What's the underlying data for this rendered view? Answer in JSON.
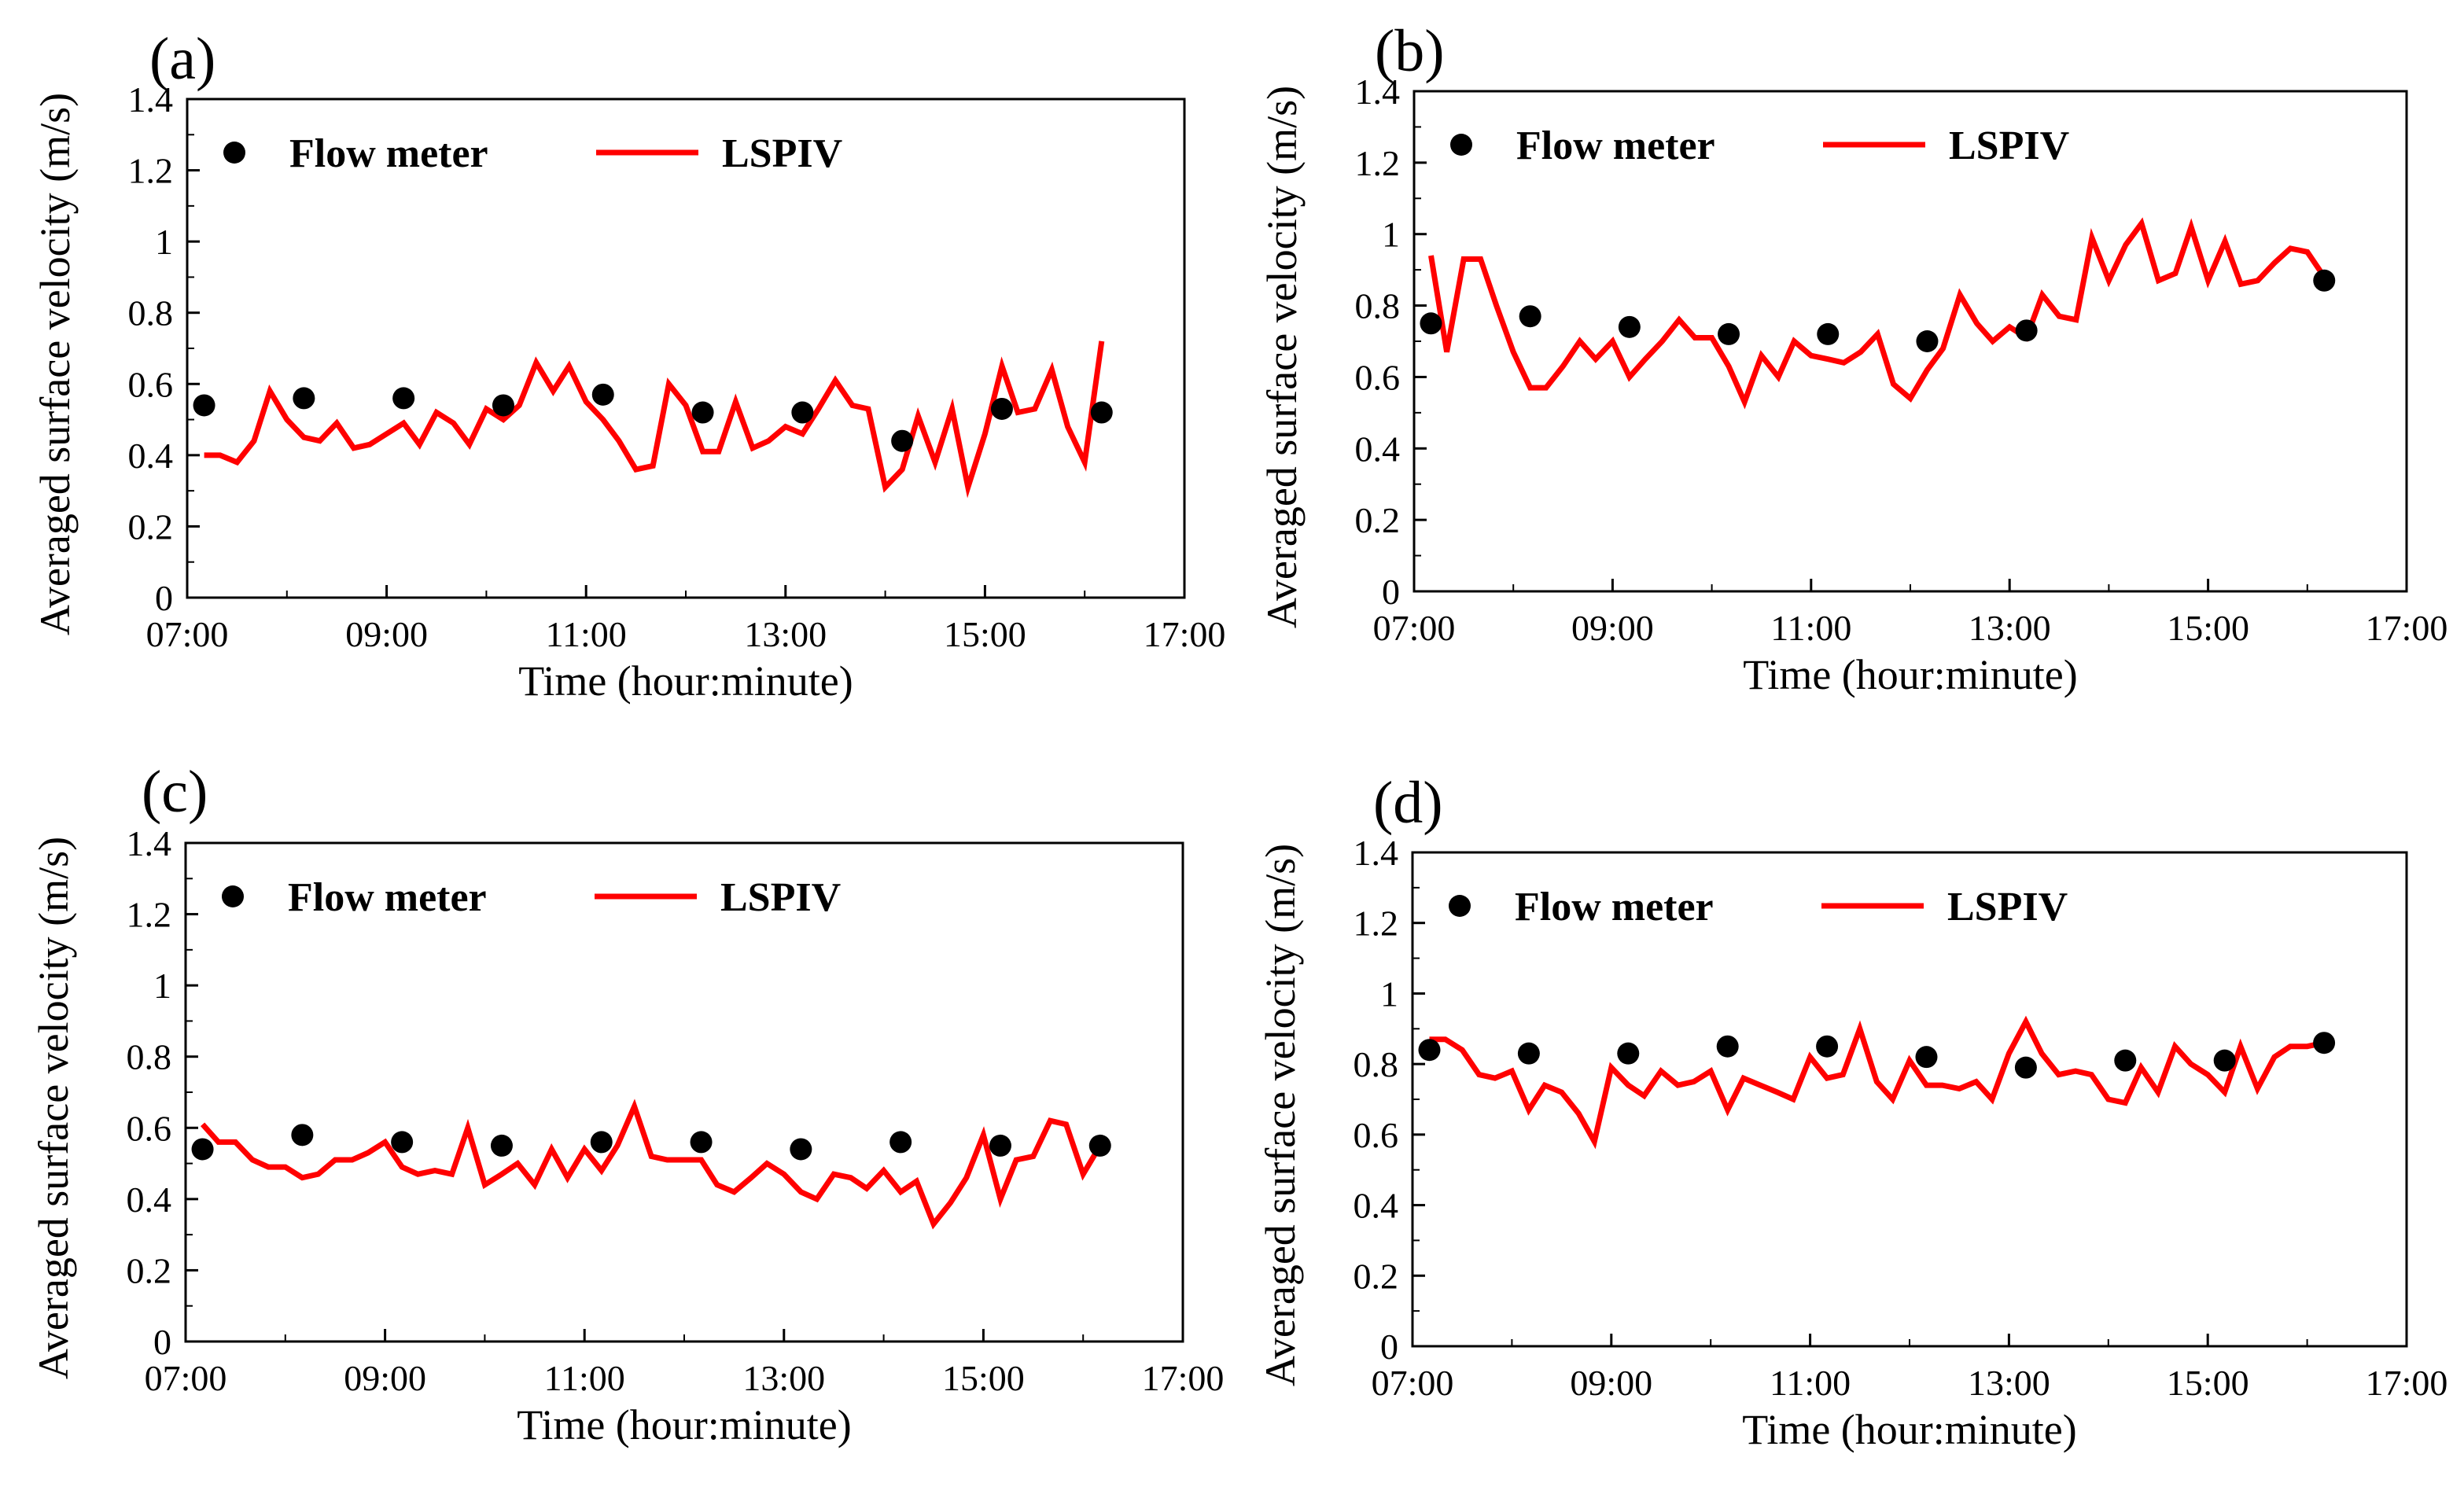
{
  "chart_data": [
    {
      "panel": "(a)",
      "type": "line",
      "xlabel": "Time (hour:minute)",
      "ylabel": "Averaged surface velocity (m/s)",
      "xlim": [
        7,
        17
      ],
      "ylim": [
        0,
        1.4
      ],
      "x_ticks": [
        "07:00",
        "09:00",
        "11:00",
        "13:00",
        "15:00",
        "17:00"
      ],
      "y_ticks": [
        "0",
        "0.2",
        "0.4",
        "0.6",
        "0.8",
        "1",
        "1.2",
        "1.4"
      ],
      "legend": "top-left",
      "series": [
        {
          "name": "Flow meter",
          "style": "points",
          "color": "#000000",
          "x": [
            7.17,
            8.17,
            9.17,
            10.17,
            11.17,
            12.17,
            13.17,
            14.17,
            15.17,
            16.17
          ],
          "y": [
            0.54,
            0.56,
            0.56,
            0.54,
            0.57,
            0.52,
            0.52,
            0.44,
            0.53,
            0.52
          ]
        },
        {
          "name": "LSPIV",
          "style": "line",
          "color": "#ff0000",
          "x": [
            7.17,
            7.33,
            7.5,
            7.67,
            7.83,
            8.0,
            8.17,
            8.33,
            8.5,
            8.67,
            8.83,
            9.0,
            9.17,
            9.33,
            9.5,
            9.67,
            9.83,
            10.0,
            10.17,
            10.33,
            10.5,
            10.67,
            10.83,
            11.0,
            11.17,
            11.33,
            11.5,
            11.67,
            11.83,
            12.0,
            12.17,
            12.33,
            12.5,
            12.67,
            12.83,
            13.0,
            13.17,
            13.33,
            13.5,
            13.67,
            13.83,
            14.0,
            14.17,
            14.33,
            14.5,
            14.67,
            14.83,
            15.0,
            15.17,
            15.33,
            15.5,
            15.67,
            15.83,
            16.0,
            16.17
          ],
          "y": [
            0.4,
            0.4,
            0.38,
            0.44,
            0.58,
            0.5,
            0.45,
            0.44,
            0.49,
            0.42,
            0.43,
            0.46,
            0.49,
            0.43,
            0.52,
            0.49,
            0.43,
            0.53,
            0.5,
            0.54,
            0.66,
            0.58,
            0.65,
            0.55,
            0.5,
            0.44,
            0.36,
            0.37,
            0.6,
            0.54,
            0.41,
            0.41,
            0.55,
            0.42,
            0.44,
            0.48,
            0.46,
            0.53,
            0.61,
            0.54,
            0.53,
            0.31,
            0.36,
            0.51,
            0.38,
            0.53,
            0.31,
            0.46,
            0.65,
            0.52,
            0.53,
            0.64,
            0.48,
            0.38,
            0.72
          ]
        }
      ]
    },
    {
      "panel": "(b)",
      "type": "line",
      "xlabel": "Time (hour:minute)",
      "ylabel": "Averaged surface velocity (m/s)",
      "xlim": [
        7,
        17
      ],
      "ylim": [
        0,
        1.4
      ],
      "x_ticks": [
        "07:00",
        "09:00",
        "11:00",
        "13:00",
        "15:00",
        "17:00"
      ],
      "y_ticks": [
        "0",
        "0.2",
        "0.4",
        "0.6",
        "0.8",
        "1",
        "1.2",
        "1.4"
      ],
      "legend": "top-left",
      "series": [
        {
          "name": "Flow meter",
          "style": "points",
          "color": "#000000",
          "x": [
            7.17,
            8.17,
            9.17,
            10.17,
            11.17,
            12.17,
            13.17,
            16.17
          ],
          "y": [
            0.75,
            0.77,
            0.74,
            0.72,
            0.72,
            0.7,
            0.73,
            0.87
          ]
        },
        {
          "name": "LSPIV",
          "style": "line",
          "color": "#ff0000",
          "x": [
            7.17,
            7.33,
            7.5,
            7.67,
            7.83,
            8.0,
            8.17,
            8.33,
            8.5,
            8.67,
            8.83,
            9.0,
            9.17,
            9.33,
            9.5,
            9.67,
            9.83,
            10.0,
            10.17,
            10.33,
            10.5,
            10.67,
            10.83,
            11.0,
            11.17,
            11.33,
            11.5,
            11.67,
            11.83,
            12.0,
            12.17,
            12.33,
            12.5,
            12.67,
            12.83,
            13.0,
            13.17,
            13.33,
            13.5,
            13.67,
            13.83,
            14.0,
            14.17,
            14.33,
            14.5,
            14.67,
            14.83,
            15.0,
            15.17,
            15.33,
            15.5,
            15.67,
            15.83,
            16.0,
            16.17
          ],
          "y": [
            0.94,
            0.67,
            0.93,
            0.93,
            0.8,
            0.67,
            0.57,
            0.57,
            0.63,
            0.7,
            0.65,
            0.7,
            0.6,
            0.65,
            0.7,
            0.76,
            0.71,
            0.71,
            0.63,
            0.53,
            0.66,
            0.6,
            0.7,
            0.66,
            0.65,
            0.64,
            0.67,
            0.72,
            0.58,
            0.54,
            0.62,
            0.68,
            0.83,
            0.75,
            0.7,
            0.74,
            0.71,
            0.83,
            0.77,
            0.76,
            0.99,
            0.87,
            0.97,
            1.03,
            0.87,
            0.89,
            1.02,
            0.87,
            0.98,
            0.86,
            0.87,
            0.92,
            0.96,
            0.95,
            0.88
          ]
        }
      ]
    },
    {
      "panel": "(c)",
      "type": "line",
      "xlabel": "Time (hour:minute)",
      "ylabel": "Averaged surface velocity (m/s)",
      "xlim": [
        7,
        17
      ],
      "ylim": [
        0,
        1.4
      ],
      "x_ticks": [
        "07:00",
        "09:00",
        "11:00",
        "13:00",
        "15:00",
        "17:00"
      ],
      "y_ticks": [
        "0",
        "0.2",
        "0.4",
        "0.6",
        "0.8",
        "1",
        "1.2",
        "1.4"
      ],
      "legend": "top-left",
      "series": [
        {
          "name": "Flow meter",
          "style": "points",
          "color": "#000000",
          "x": [
            7.17,
            8.17,
            9.17,
            10.17,
            11.17,
            12.17,
            13.17,
            14.17,
            15.17,
            16.17
          ],
          "y": [
            0.54,
            0.58,
            0.56,
            0.55,
            0.56,
            0.56,
            0.54,
            0.56,
            0.55,
            0.55
          ]
        },
        {
          "name": "LSPIV",
          "style": "line",
          "color": "#ff0000",
          "x": [
            7.17,
            7.33,
            7.5,
            7.67,
            7.83,
            8.0,
            8.17,
            8.33,
            8.5,
            8.67,
            8.83,
            9.0,
            9.17,
            9.33,
            9.5,
            9.67,
            9.83,
            10.0,
            10.17,
            10.33,
            10.5,
            10.67,
            10.83,
            11.0,
            11.17,
            11.33,
            11.5,
            11.67,
            11.83,
            12.0,
            12.17,
            12.33,
            12.5,
            12.67,
            12.83,
            13.0,
            13.17,
            13.33,
            13.5,
            13.67,
            13.83,
            14.0,
            14.17,
            14.33,
            14.5,
            14.67,
            14.83,
            15.0,
            15.17,
            15.33,
            15.5,
            15.67,
            15.83,
            16.0,
            16.17
          ],
          "y": [
            0.61,
            0.56,
            0.56,
            0.51,
            0.49,
            0.49,
            0.46,
            0.47,
            0.51,
            0.51,
            0.53,
            0.56,
            0.49,
            0.47,
            0.48,
            0.47,
            0.6,
            0.44,
            0.47,
            0.5,
            0.44,
            0.54,
            0.46,
            0.54,
            0.48,
            0.55,
            0.66,
            0.52,
            0.51,
            0.51,
            0.51,
            0.44,
            0.42,
            0.46,
            0.5,
            0.47,
            0.42,
            0.4,
            0.47,
            0.46,
            0.43,
            0.48,
            0.42,
            0.45,
            0.33,
            0.39,
            0.46,
            0.58,
            0.4,
            0.51,
            0.52,
            0.62,
            0.61,
            0.47,
            0.55
          ]
        }
      ]
    },
    {
      "panel": "(d)",
      "type": "line",
      "xlabel": "Time (hour:minute)",
      "ylabel": "Averaged surface velocity (m/s)",
      "xlim": [
        7,
        17
      ],
      "ylim": [
        0,
        1.4
      ],
      "x_ticks": [
        "07:00",
        "09:00",
        "11:00",
        "13:00",
        "15:00",
        "17:00"
      ],
      "y_ticks": [
        "0",
        "0.2",
        "0.4",
        "0.6",
        "0.8",
        "1",
        "1.2",
        "1.4"
      ],
      "legend": "top-left",
      "series": [
        {
          "name": "Flow meter",
          "style": "points",
          "color": "#000000",
          "x": [
            7.17,
            8.17,
            9.17,
            10.17,
            11.17,
            12.17,
            13.17,
            14.17,
            15.17,
            16.17
          ],
          "y": [
            0.84,
            0.83,
            0.83,
            0.85,
            0.85,
            0.82,
            0.79,
            0.81,
            0.81,
            0.86
          ]
        },
        {
          "name": "LSPIV",
          "style": "line",
          "color": "#ff0000",
          "x": [
            7.17,
            7.33,
            7.5,
            7.67,
            7.83,
            8.0,
            8.17,
            8.33,
            8.5,
            8.67,
            8.83,
            9.0,
            9.17,
            9.33,
            9.5,
            9.67,
            9.83,
            10.0,
            10.17,
            10.33,
            10.5,
            10.67,
            10.83,
            11.0,
            11.17,
            11.33,
            11.5,
            11.67,
            11.83,
            12.0,
            12.17,
            12.33,
            12.5,
            12.67,
            12.83,
            13.0,
            13.17,
            13.33,
            13.5,
            13.67,
            13.83,
            14.0,
            14.17,
            14.33,
            14.5,
            14.67,
            14.83,
            15.0,
            15.17,
            15.33,
            15.5,
            15.67,
            15.83,
            16.0,
            16.17
          ],
          "y": [
            0.87,
            0.87,
            0.84,
            0.77,
            0.76,
            0.78,
            0.67,
            0.74,
            0.72,
            0.66,
            0.58,
            0.79,
            0.74,
            0.71,
            0.78,
            0.74,
            0.75,
            0.78,
            0.67,
            0.76,
            0.74,
            0.72,
            0.7,
            0.82,
            0.76,
            0.77,
            0.9,
            0.75,
            0.7,
            0.81,
            0.74,
            0.74,
            0.73,
            0.75,
            0.7,
            0.83,
            0.92,
            0.83,
            0.77,
            0.78,
            0.77,
            0.7,
            0.69,
            0.79,
            0.72,
            0.85,
            0.8,
            0.77,
            0.72,
            0.85,
            0.73,
            0.82,
            0.85,
            0.85,
            0.86
          ]
        }
      ]
    }
  ]
}
